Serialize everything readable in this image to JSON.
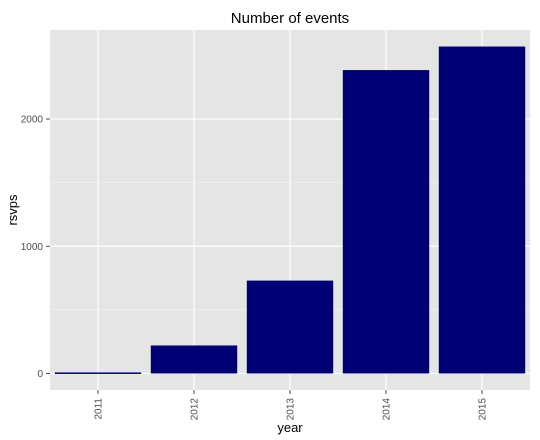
{
  "chart_data": {
    "type": "bar",
    "title": "Number of events",
    "xlabel": "year",
    "ylabel": "rsvps",
    "categories": [
      "2011",
      "2012",
      "2013",
      "2014",
      "2015"
    ],
    "values": [
      8,
      220,
      730,
      2385,
      2570
    ],
    "yticks": [
      0,
      1000,
      2000
    ],
    "ylim": [
      -130,
      2700
    ],
    "grid": true,
    "legend": "none",
    "bar_color": "#000075",
    "panel_background": "#e5e5e5",
    "gridline_color": "#ffffff"
  }
}
